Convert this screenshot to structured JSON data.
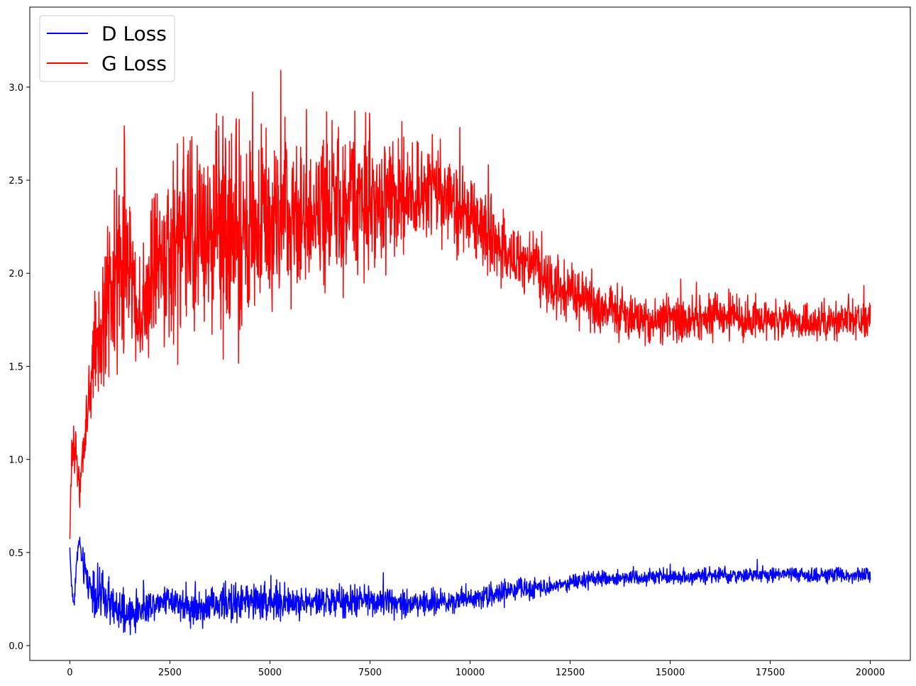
{
  "chart_data": {
    "type": "line",
    "title": "",
    "xlabel": "",
    "ylabel": "",
    "xlim": [
      -1000,
      21000
    ],
    "ylim": [
      -0.08,
      3.43
    ],
    "grid": false,
    "legend_position": "top-left",
    "xticks": [
      0,
      2500,
      5000,
      7500,
      10000,
      12500,
      15000,
      17500,
      20000
    ],
    "xtick_labels": [
      "0",
      "2500",
      "5000",
      "7500",
      "10000",
      "12500",
      "15000",
      "17500",
      "20000"
    ],
    "yticks": [
      0.0,
      0.5,
      1.0,
      1.5,
      2.0,
      2.5,
      3.0
    ],
    "ytick_labels": [
      "0.0",
      "0.5",
      "1.0",
      "1.5",
      "2.0",
      "2.5",
      "3.0"
    ],
    "series": [
      {
        "name": "D Loss",
        "color": "#0000ff",
        "x": [
          0,
          50,
          100,
          150,
          200,
          250,
          300,
          400,
          500,
          600,
          700,
          800,
          1000,
          1200,
          1400,
          1600,
          1800,
          2000,
          2500,
          3000,
          3500,
          4000,
          4500,
          5000,
          5500,
          6000,
          6500,
          7000,
          7500,
          8000,
          8500,
          9000,
          9500,
          10000,
          10500,
          11000,
          11500,
          12000,
          12500,
          13000,
          13500,
          14000,
          14500,
          15000,
          15500,
          16000,
          16500,
          17000,
          17500,
          18000,
          18500,
          19000,
          19500,
          20000
        ],
        "y": [
          0.52,
          0.3,
          0.22,
          0.38,
          0.52,
          0.56,
          0.45,
          0.38,
          0.32,
          0.3,
          0.27,
          0.26,
          0.22,
          0.18,
          0.16,
          0.17,
          0.2,
          0.22,
          0.26,
          0.2,
          0.21,
          0.23,
          0.24,
          0.24,
          0.23,
          0.23,
          0.24,
          0.23,
          0.25,
          0.24,
          0.23,
          0.23,
          0.24,
          0.26,
          0.27,
          0.29,
          0.31,
          0.32,
          0.34,
          0.35,
          0.36,
          0.37,
          0.37,
          0.37,
          0.37,
          0.38,
          0.37,
          0.38,
          0.38,
          0.38,
          0.38,
          0.38,
          0.38,
          0.38
        ],
        "noise": [
          0.02,
          0.02,
          0.02,
          0.03,
          0.03,
          0.03,
          0.04,
          0.05,
          0.06,
          0.07,
          0.07,
          0.06,
          0.06,
          0.06,
          0.06,
          0.05,
          0.04,
          0.04,
          0.04,
          0.04,
          0.05,
          0.05,
          0.05,
          0.05,
          0.04,
          0.04,
          0.04,
          0.04,
          0.04,
          0.04,
          0.04,
          0.03,
          0.03,
          0.03,
          0.03,
          0.03,
          0.03,
          0.02,
          0.02,
          0.02,
          0.02,
          0.02,
          0.02,
          0.02,
          0.02,
          0.02,
          0.02,
          0.02,
          0.02,
          0.02,
          0.02,
          0.02,
          0.02,
          0.02
        ]
      },
      {
        "name": "G Loss",
        "color": "#ff0000",
        "x": [
          0,
          50,
          100,
          150,
          200,
          250,
          300,
          400,
          500,
          600,
          700,
          800,
          1000,
          1200,
          1400,
          1600,
          1800,
          2000,
          2500,
          3000,
          3500,
          4000,
          4500,
          5000,
          5500,
          6000,
          6500,
          7000,
          7500,
          8000,
          8500,
          9000,
          9500,
          10000,
          10500,
          11000,
          11500,
          12000,
          12500,
          13000,
          13500,
          14000,
          14500,
          15000,
          15500,
          16000,
          16500,
          17000,
          17500,
          18000,
          18500,
          19000,
          19500,
          20000
        ],
        "y": [
          0.55,
          1.05,
          1.15,
          1.0,
          0.85,
          0.85,
          0.95,
          1.15,
          1.35,
          1.55,
          1.65,
          1.6,
          1.85,
          2.05,
          2.15,
          1.9,
          1.75,
          1.95,
          2.1,
          2.2,
          2.25,
          2.25,
          2.2,
          2.25,
          2.3,
          2.3,
          2.35,
          2.4,
          2.4,
          2.4,
          2.4,
          2.45,
          2.4,
          2.3,
          2.2,
          2.1,
          2.05,
          1.95,
          1.9,
          1.85,
          1.8,
          1.75,
          1.75,
          1.75,
          1.75,
          1.76,
          1.76,
          1.75,
          1.75,
          1.74,
          1.74,
          1.74,
          1.74,
          1.74
        ],
        "noise": [
          0.05,
          0.08,
          0.08,
          0.08,
          0.06,
          0.06,
          0.06,
          0.08,
          0.1,
          0.14,
          0.18,
          0.16,
          0.2,
          0.28,
          0.3,
          0.18,
          0.14,
          0.22,
          0.24,
          0.24,
          0.26,
          0.28,
          0.24,
          0.22,
          0.2,
          0.2,
          0.2,
          0.2,
          0.18,
          0.16,
          0.14,
          0.14,
          0.12,
          0.12,
          0.1,
          0.09,
          0.08,
          0.08,
          0.07,
          0.07,
          0.06,
          0.06,
          0.06,
          0.06,
          0.06,
          0.06,
          0.06,
          0.05,
          0.05,
          0.05,
          0.05,
          0.05,
          0.05,
          0.05
        ]
      }
    ]
  }
}
